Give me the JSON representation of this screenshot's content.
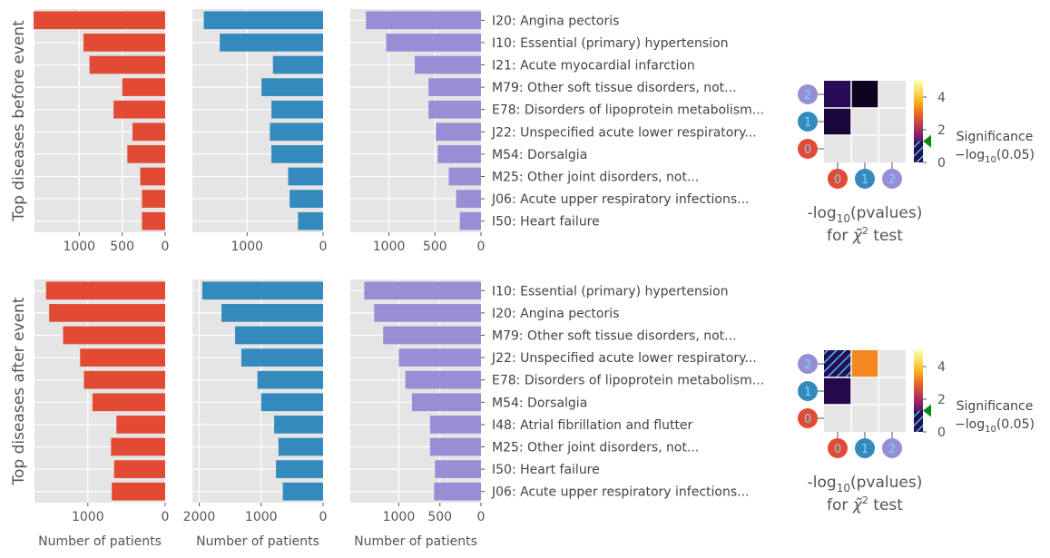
{
  "chart_data": [
    {
      "type": "bar",
      "panel": "top",
      "ylabel": "Top diseases before event",
      "categories": [
        "I20: Angina pectoris",
        "I10: Essential (primary) hypertension",
        "I21: Acute myocardial infarction",
        "M79: Other soft tissue disorders, not...",
        "E78: Disorders of lipoprotein metabolism...",
        "J22: Unspecified acute lower respiratory...",
        "M54: Dorsalgia",
        "M25: Other joint disorders, not...",
        "J06: Acute upper respiratory infections...",
        "I50: Heart failure"
      ],
      "subplots": [
        {
          "name": "cluster-0",
          "color": "#E24A33",
          "xlim": [
            1520,
            0
          ],
          "ticks": [
            1000,
            500,
            0
          ],
          "values": [
            1530,
            950,
            880,
            500,
            600,
            380,
            440,
            290,
            270,
            270
          ]
        },
        {
          "name": "cluster-1",
          "color": "#348ABD",
          "xlim": [
            1720,
            0
          ],
          "ticks": [
            1000,
            0
          ],
          "values": [
            1570,
            1360,
            660,
            810,
            680,
            700,
            680,
            460,
            440,
            330
          ]
        },
        {
          "name": "cluster-2",
          "color": "#988ED5",
          "xlim": [
            1420,
            0
          ],
          "ticks": [
            1000,
            500,
            0
          ],
          "values": [
            1250,
            1030,
            720,
            570,
            570,
            490,
            470,
            350,
            270,
            230
          ]
        }
      ],
      "xlabel": ""
    },
    {
      "type": "bar",
      "panel": "bottom",
      "ylabel": "Top diseases after event",
      "categories": [
        "I10: Essential (primary) hypertension",
        "I20: Angina pectoris",
        "M79: Other soft tissue disorders, not...",
        "J22: Unspecified acute lower respiratory...",
        "E78: Disorders of lipoprotein metabolism...",
        "M54: Dorsalgia",
        "I48: Atrial fibrillation and flutter",
        "M25: Other joint disorders, not...",
        "I50: Heart failure",
        "J06: Acute upper respiratory infections..."
      ],
      "subplots": [
        {
          "name": "cluster-0",
          "color": "#E24A33",
          "xlim": [
            1690,
            0
          ],
          "ticks": [
            1000,
            0
          ],
          "values": [
            1540,
            1500,
            1320,
            1100,
            1050,
            940,
            630,
            700,
            660,
            690
          ]
        },
        {
          "name": "cluster-1",
          "color": "#348ABD",
          "xlim": [
            2110,
            0
          ],
          "ticks": [
            2000,
            1000,
            0
          ],
          "values": [
            1950,
            1640,
            1420,
            1320,
            1060,
            1000,
            790,
            720,
            760,
            650
          ]
        },
        {
          "name": "cluster-2",
          "color": "#988ED5",
          "xlim": [
            1590,
            0
          ],
          "ticks": [
            1000,
            500,
            0
          ],
          "values": [
            1420,
            1300,
            1190,
            1000,
            920,
            840,
            620,
            620,
            560,
            570
          ]
        }
      ],
      "xlabel": "Number of patients"
    },
    {
      "type": "heatmap",
      "panel": "top",
      "xlabel_line1": "-log",
      "xlabel_sub": "10",
      "xlabel_rest": "(pvalues)",
      "xlabel_line2_a": "for ",
      "xlabel_line2_b": "χ̃",
      "xlabel_line2_sup": "2",
      "xlabel_line2_c": " test",
      "clusters": [
        "0",
        "1",
        "2"
      ],
      "cluster_colors": [
        "#E24A33",
        "#348ABD",
        "#988ED5"
      ],
      "cells": [
        {
          "row": "2",
          "col": "0",
          "value": 0.6
        },
        {
          "row": "2",
          "col": "1",
          "value": 0.2
        },
        {
          "row": "1",
          "col": "0",
          "value": 0.4
        }
      ],
      "colorbar": {
        "min": 0,
        "max": 5,
        "ticks": [
          0,
          2,
          4
        ],
        "threshold": 1.3
      },
      "legend_title": "Significance",
      "legend_label_a": "−log",
      "legend_label_sub": "10",
      "legend_label_b": "(0.05)"
    },
    {
      "type": "heatmap",
      "panel": "bottom",
      "xlabel_line1": "-log",
      "xlabel_sub": "10",
      "xlabel_rest": "(pvalues)",
      "xlabel_line2_a": "for ",
      "xlabel_line2_b": "χ̃",
      "xlabel_line2_sup": "2",
      "xlabel_line2_c": " test",
      "clusters": [
        "0",
        "1",
        "2"
      ],
      "cluster_colors": [
        "#E24A33",
        "#348ABD",
        "#988ED5"
      ],
      "cells": [
        {
          "row": "2",
          "col": "0",
          "value": 0.0,
          "hatched": true
        },
        {
          "row": "2",
          "col": "1",
          "value": 3.3
        },
        {
          "row": "1",
          "col": "0",
          "value": 0.5
        }
      ],
      "colorbar": {
        "min": 0,
        "max": 5,
        "ticks": [
          0,
          2,
          4
        ],
        "threshold": 1.3
      },
      "legend_title": "Significance",
      "legend_label_a": "−log",
      "legend_label_sub": "10",
      "legend_label_b": "(0.05)"
    }
  ]
}
